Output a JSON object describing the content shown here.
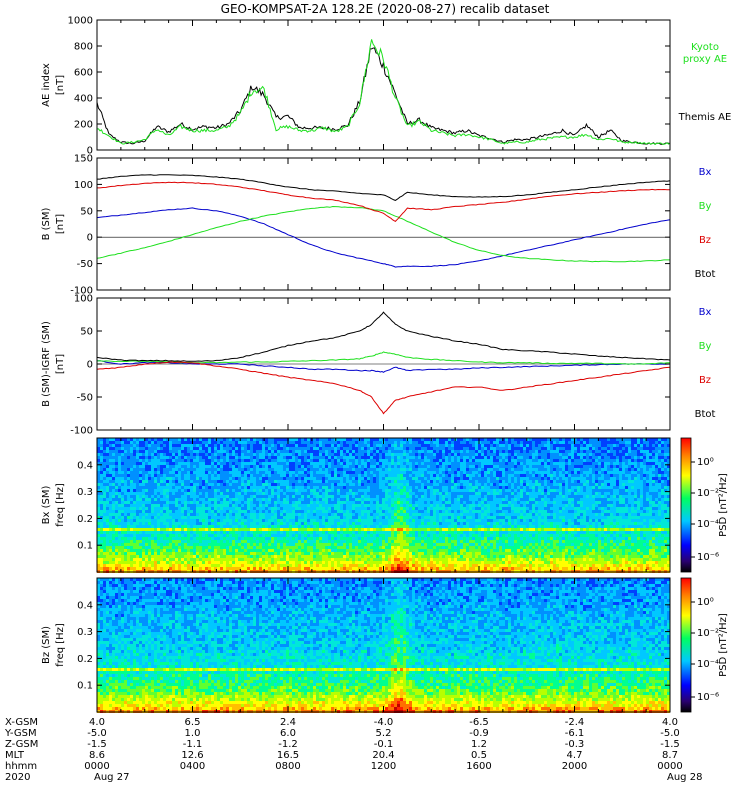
{
  "title": "GEO-KOMPSAT-2A 128.2E (2020-08-27) recalib dataset",
  "colors": {
    "black": "#000000",
    "green": "#1ee01e",
    "blue": "#0000cc",
    "red": "#dd0000"
  },
  "chart_data": [
    {
      "id": "ae",
      "type": "line",
      "ylabel": "AE index",
      "yunit": "[nT]",
      "ylim": [
        0,
        1000
      ],
      "yticks": [
        "0",
        "200",
        "400",
        "600",
        "800",
        "1000"
      ],
      "x_hours": [
        0,
        0.5,
        1,
        1.5,
        2,
        2.5,
        3,
        3.5,
        4,
        4.5,
        5,
        5.5,
        6,
        6.5,
        7,
        7.5,
        8,
        8.5,
        9,
        9.5,
        10,
        10.5,
        11,
        11.5,
        12,
        12.5,
        13,
        13.5,
        14,
        14.5,
        15,
        15.5,
        16,
        16.5,
        17,
        17.5,
        18,
        18.5,
        19,
        19.5,
        20,
        20.5,
        21,
        21.5,
        22,
        22.5,
        23,
        23.5,
        24
      ],
      "legend": [
        {
          "label": "Kyoto",
          "color": "#1ee01e"
        },
        {
          "label": "proxy AE",
          "color": "#1ee01e"
        },
        {
          "label": "Themis AE",
          "color": "#000000"
        }
      ],
      "series": [
        {
          "name": "Themis AE",
          "color": "#000000",
          "values": [
            360,
            120,
            60,
            50,
            70,
            180,
            140,
            200,
            160,
            180,
            170,
            200,
            300,
            490,
            420,
            250,
            260,
            170,
            170,
            170,
            160,
            190,
            370,
            800,
            650,
            430,
            200,
            230,
            170,
            150,
            130,
            150,
            110,
            90,
            60,
            80,
            80,
            100,
            120,
            150,
            110,
            190,
            100,
            150,
            70,
            60,
            50,
            50,
            50
          ]
        },
        {
          "name": "Kyoto proxy AE",
          "color": "#1ee01e",
          "values": [
            170,
            110,
            50,
            60,
            80,
            160,
            110,
            180,
            150,
            150,
            150,
            180,
            280,
            460,
            470,
            160,
            180,
            150,
            150,
            170,
            140,
            180,
            360,
            840,
            700,
            400,
            180,
            220,
            150,
            130,
            110,
            120,
            100,
            80,
            50,
            60,
            60,
            80,
            90,
            100,
            100,
            120,
            80,
            90,
            60,
            60,
            50,
            50,
            50
          ]
        }
      ]
    },
    {
      "id": "bgsm",
      "type": "line",
      "ylabel": "B (SM)",
      "yunit": "[nT]",
      "ylim": [
        -100,
        150
      ],
      "yticks": [
        "-100",
        "-50",
        "0",
        "50",
        "100",
        "150"
      ],
      "x_hours": [
        0,
        1,
        2,
        3,
        4,
        5,
        6,
        7,
        8,
        9,
        10,
        11,
        12,
        12.5,
        13,
        14,
        15,
        16,
        17,
        18,
        19,
        20,
        21,
        22,
        23,
        24
      ],
      "legend": [
        {
          "label": "Bx",
          "color": "#0000cc"
        },
        {
          "label": "By",
          "color": "#1ee01e"
        },
        {
          "label": "Bz",
          "color": "#dd0000"
        },
        {
          "label": "Btot",
          "color": "#000000"
        }
      ],
      "series": [
        {
          "name": "Bx",
          "color": "#0000cc",
          "values": [
            37,
            42,
            47,
            52,
            55,
            50,
            40,
            25,
            5,
            -15,
            -30,
            -40,
            -50,
            -56,
            -55,
            -55,
            -52,
            -45,
            -35,
            -25,
            -15,
            -5,
            5,
            15,
            25,
            33
          ]
        },
        {
          "name": "By",
          "color": "#1ee01e",
          "values": [
            -40,
            -30,
            -20,
            -8,
            5,
            18,
            30,
            40,
            48,
            55,
            58,
            56,
            50,
            40,
            30,
            10,
            -10,
            -25,
            -35,
            -40,
            -43,
            -45,
            -46,
            -46,
            -45,
            -43
          ]
        },
        {
          "name": "Bz",
          "color": "#dd0000",
          "values": [
            93,
            98,
            102,
            104,
            103,
            100,
            95,
            88,
            80,
            74,
            70,
            60,
            45,
            30,
            55,
            52,
            58,
            62,
            66,
            72,
            78,
            82,
            85,
            88,
            90,
            90
          ]
        },
        {
          "name": "Btot",
          "color": "#000000",
          "values": [
            110,
            115,
            118,
            118,
            117,
            114,
            110,
            103,
            95,
            90,
            87,
            83,
            80,
            70,
            85,
            80,
            77,
            76,
            77,
            80,
            85,
            90,
            95,
            100,
            104,
            107
          ]
        }
      ]
    },
    {
      "id": "bdiff",
      "type": "line",
      "ylabel": "B (SM)-IGRF (SM)",
      "yunit": "[nT]",
      "ylim": [
        -100,
        100
      ],
      "yticks": [
        "-100",
        "-50",
        "0",
        "50",
        "100"
      ],
      "x_hours": [
        0,
        1,
        2,
        3,
        4,
        5,
        6,
        7,
        8,
        9,
        10,
        11,
        11.5,
        12,
        12.5,
        13,
        14,
        15,
        16,
        17,
        18,
        19,
        20,
        21,
        22,
        23,
        24
      ],
      "legend": [
        {
          "label": "Bx",
          "color": "#0000cc"
        },
        {
          "label": "By",
          "color": "#1ee01e"
        },
        {
          "label": "Bz",
          "color": "#dd0000"
        },
        {
          "label": "Btot",
          "color": "#000000"
        }
      ],
      "series": [
        {
          "name": "Bx",
          "color": "#0000cc",
          "values": [
            5,
            0,
            2,
            2,
            0,
            0,
            0,
            -3,
            -5,
            -8,
            -8,
            -10,
            -10,
            -12,
            -5,
            -10,
            -8,
            -8,
            -6,
            -5,
            -4,
            -3,
            -2,
            -1,
            0,
            0,
            0
          ]
        },
        {
          "name": "By",
          "color": "#1ee01e",
          "values": [
            5,
            4,
            4,
            3,
            2,
            2,
            3,
            3,
            4,
            5,
            6,
            8,
            12,
            18,
            15,
            10,
            7,
            5,
            3,
            2,
            2,
            1,
            1,
            1,
            0,
            0,
            2
          ]
        },
        {
          "name": "Bz",
          "color": "#dd0000",
          "values": [
            -8,
            -5,
            0,
            3,
            2,
            -3,
            -8,
            -14,
            -20,
            -25,
            -30,
            -40,
            -50,
            -75,
            -55,
            -50,
            -42,
            -35,
            -35,
            -40,
            -35,
            -30,
            -25,
            -20,
            -15,
            -10,
            -5
          ]
        },
        {
          "name": "Btot",
          "color": "#000000",
          "values": [
            10,
            6,
            5,
            5,
            4,
            5,
            10,
            18,
            28,
            35,
            40,
            50,
            60,
            78,
            60,
            50,
            42,
            35,
            30,
            22,
            20,
            18,
            15,
            12,
            10,
            8,
            6
          ]
        }
      ]
    },
    {
      "id": "bx_spec",
      "type": "heatmap",
      "ylabel": "Bx (SM)",
      "yunit": "freq [Hz]",
      "ylim": [
        0,
        0.5
      ],
      "yticks": [
        "0.1",
        "0.2",
        "0.3",
        "0.4"
      ],
      "colorbar_label": "PSD [nT²/Hz]",
      "colorbar_ticks": [
        "10⁰",
        "10⁻²",
        "10⁻⁴",
        "10⁻⁶"
      ]
    },
    {
      "id": "bz_spec",
      "type": "heatmap",
      "ylabel": "Bz (SM)",
      "yunit": "freq [Hz]",
      "ylim": [
        0,
        0.5
      ],
      "yticks": [
        "0.1",
        "0.2",
        "0.3",
        "0.4"
      ],
      "colorbar_label": "PSD [nT²/Hz]",
      "colorbar_ticks": [
        "10⁰",
        "10⁻²",
        "10⁻⁴",
        "10⁻⁶"
      ]
    }
  ],
  "orbit": {
    "row_labels": [
      "X-GSM",
      "Y-GSM",
      "Z-GSM",
      "MLT",
      "hhmm",
      "2020"
    ],
    "columns": [
      [
        "4.0",
        "-5.0",
        "-1.5",
        "8.6",
        "0000",
        "Aug 27"
      ],
      [
        "6.5",
        "1.0",
        "-1.1",
        "12.6",
        "0400",
        ""
      ],
      [
        "2.4",
        "6.0",
        "-1.2",
        "16.5",
        "0800",
        ""
      ],
      [
        "-4.0",
        "5.2",
        "-0.1",
        "20.4",
        "1200",
        ""
      ],
      [
        "-6.5",
        "-0.9",
        "1.2",
        "0.5",
        "1600",
        ""
      ],
      [
        "-2.4",
        "-6.1",
        "-0.3",
        "4.7",
        "2000",
        ""
      ],
      [
        "4.0",
        "-5.0",
        "-1.5",
        "8.7",
        "0000",
        "Aug 28"
      ]
    ]
  }
}
